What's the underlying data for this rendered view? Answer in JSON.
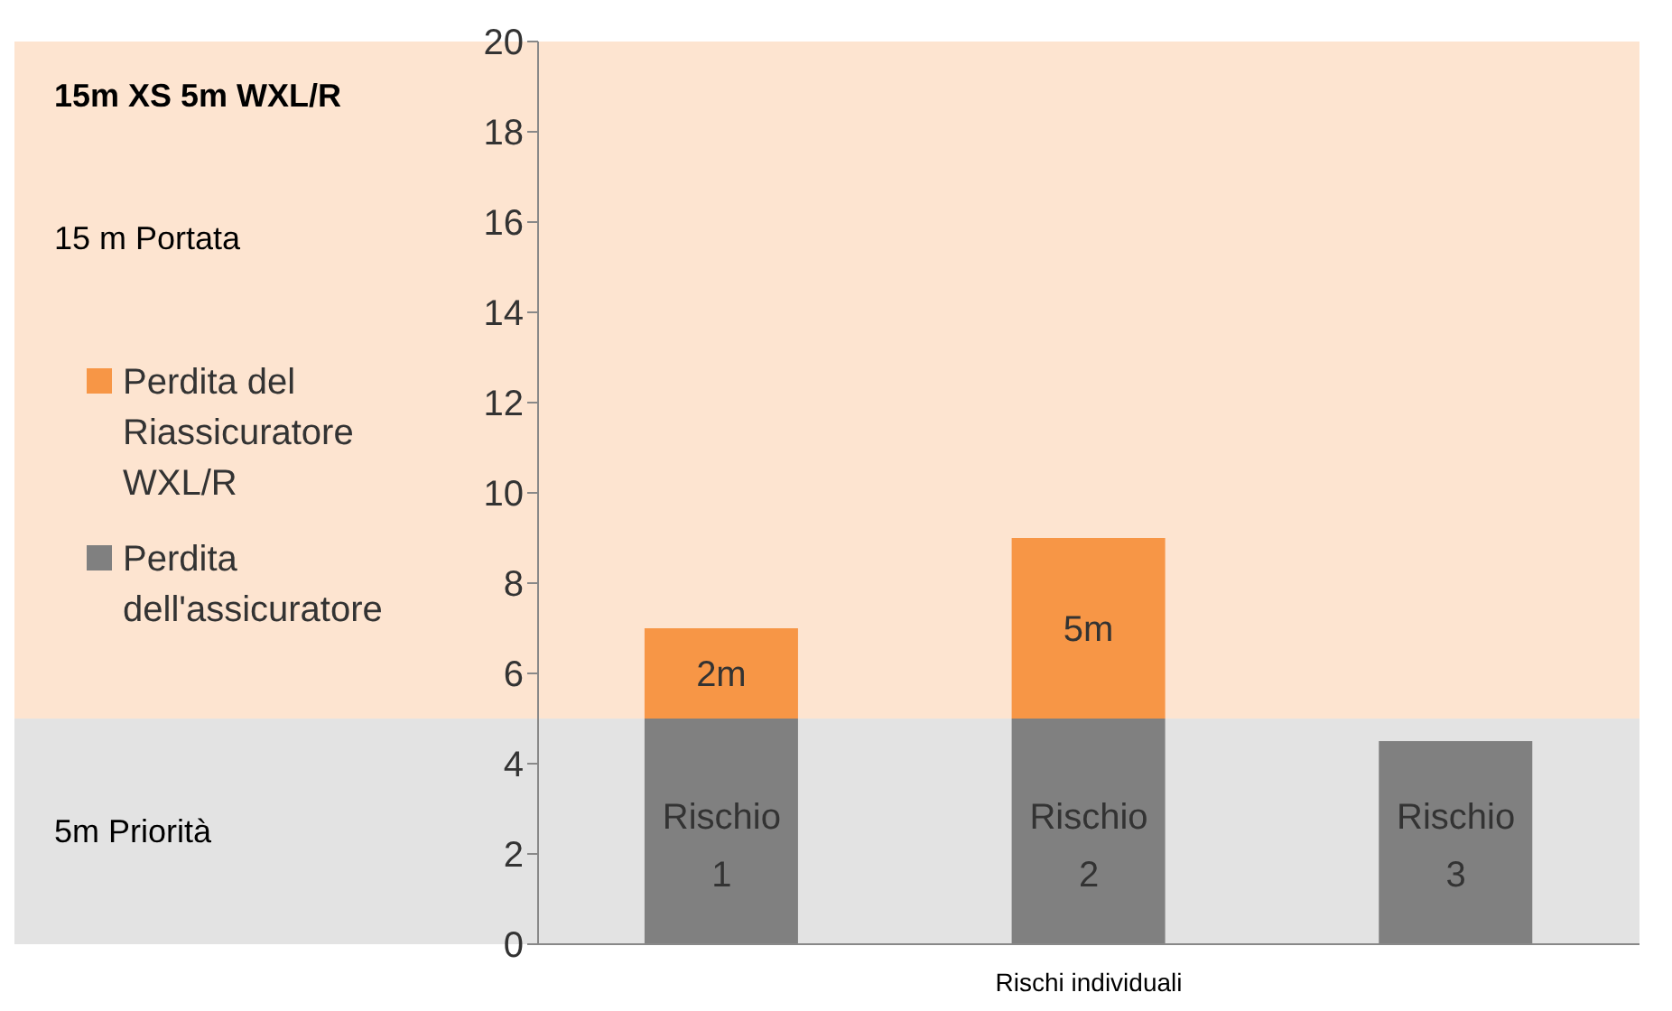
{
  "chart_data": {
    "type": "bar",
    "title": "15m XS 5m WXL/R",
    "xlabel": "Rischi individuali",
    "categories": [
      "Rischio 1",
      "Rischio 2",
      "Rischio 3"
    ],
    "stacked": true,
    "series": [
      {
        "name": "Perdita dell'assicuratore",
        "color": "#808080",
        "values": [
          5,
          5,
          4.5
        ]
      },
      {
        "name": "Perdita del Riassicuratore WXL/R",
        "color": "#f79646",
        "values": [
          2,
          4,
          null
        ]
      }
    ],
    "annotations": [
      "2m",
      "5m"
    ],
    "ylim": [
      0,
      20
    ],
    "yticks": [
      0,
      2,
      4,
      6,
      8,
      10,
      12,
      14,
      16,
      18,
      20
    ],
    "bands": [
      {
        "axis": "y",
        "from": 0,
        "to": 5,
        "label": "5m Priorità",
        "color": "#e3e3e3"
      },
      {
        "axis": "y",
        "from": 5,
        "to": 20,
        "label": "15 m Portata",
        "color": "#fde4d0"
      }
    ],
    "grid": false,
    "legend": "left"
  }
}
